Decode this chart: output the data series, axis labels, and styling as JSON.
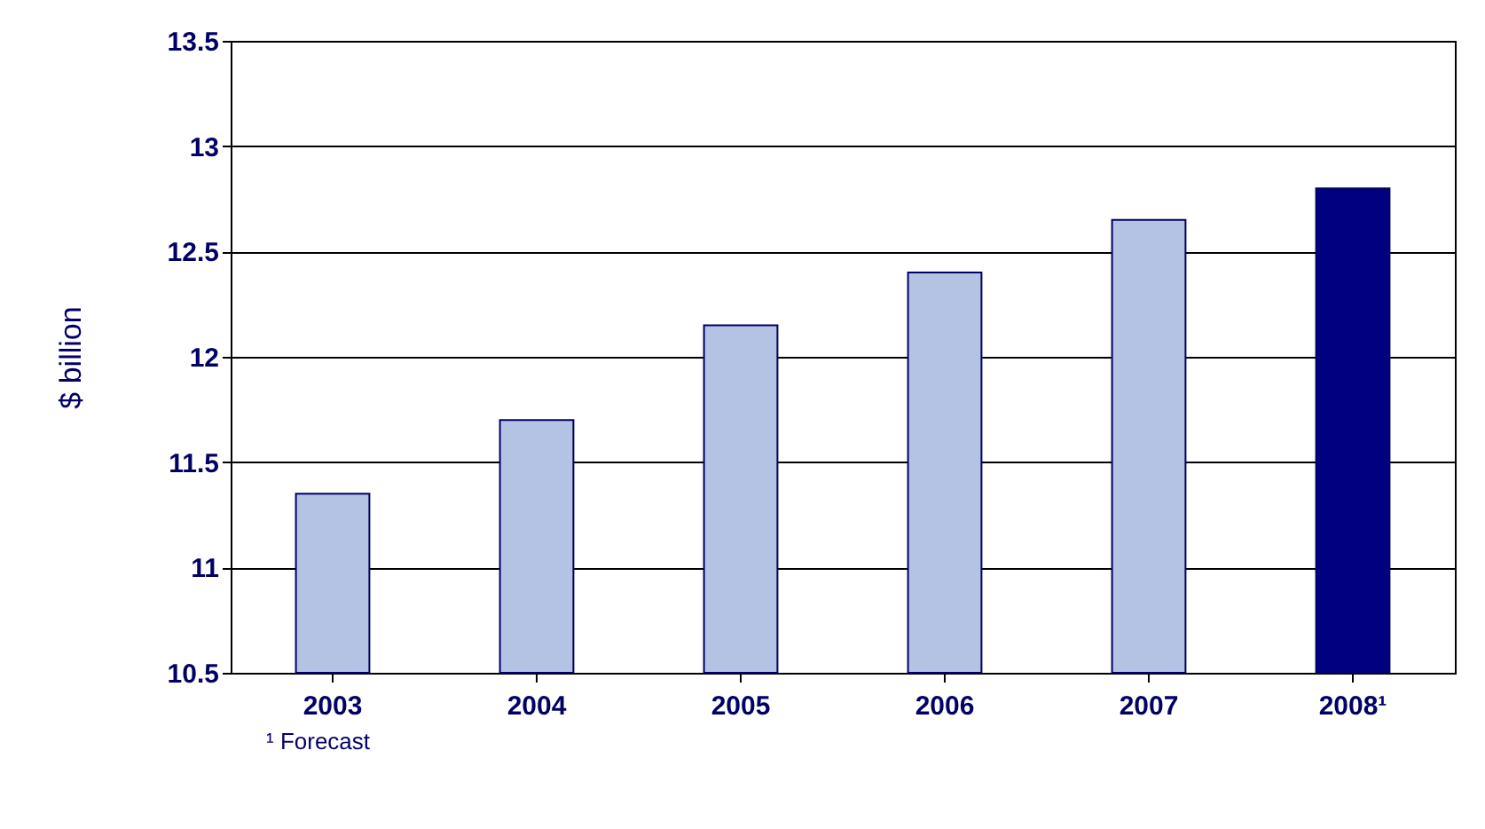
{
  "chart_data": {
    "type": "bar",
    "ylabel": "$ billion",
    "categories": [
      "2003",
      "2004",
      "2005",
      "2006",
      "2007",
      "2008¹"
    ],
    "values": [
      11.35,
      11.7,
      12.15,
      12.4,
      12.65,
      12.8
    ],
    "colors": [
      "#b4c3e3",
      "#b4c3e3",
      "#b4c3e3",
      "#b4c3e3",
      "#b4c3e3",
      "#000080"
    ],
    "ylim": [
      10.5,
      13.5
    ],
    "yticks": [
      10.5,
      11,
      11.5,
      12,
      12.5,
      13,
      13.5
    ],
    "grid": "y",
    "annotations": [
      "¹ Forecast"
    ]
  }
}
